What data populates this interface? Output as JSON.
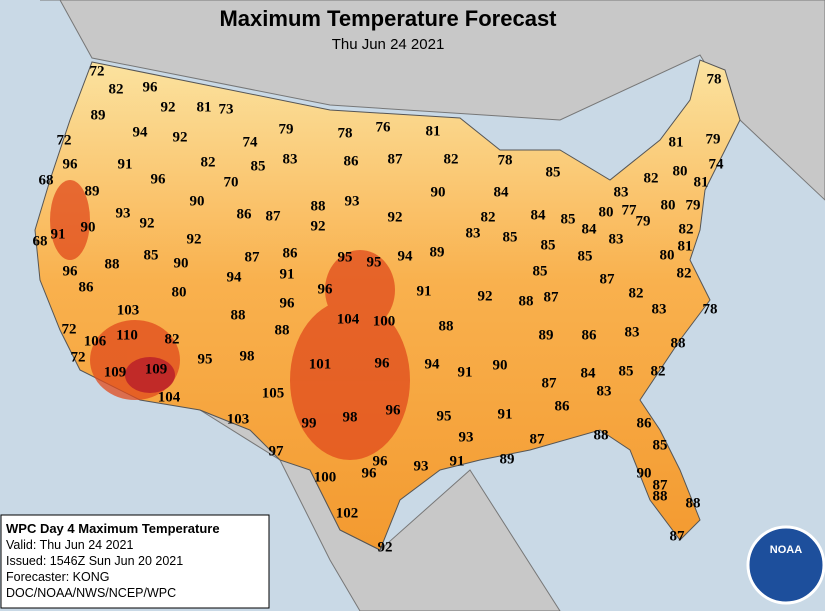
{
  "title": "Maximum Temperature Forecast",
  "subtitle": "Thu Jun 24 2021",
  "temperatures": [
    72,
    82,
    96,
    92,
    81,
    73,
    89,
    94,
    92,
    74,
    79,
    78,
    76,
    81,
    78,
    72,
    82,
    85,
    83,
    86,
    87,
    82,
    78,
    81,
    79,
    96,
    91,
    96,
    70,
    85,
    80,
    74,
    68,
    89,
    90,
    93,
    92,
    86,
    87,
    88,
    93,
    90,
    84,
    82,
    81,
    83,
    80,
    79,
    92,
    82,
    84,
    85,
    80,
    77,
    79,
    90,
    91,
    92,
    83,
    85,
    85,
    84,
    83,
    82,
    92,
    68,
    81,
    88,
    85,
    90,
    87,
    86,
    95,
    95,
    94,
    89,
    85,
    85,
    80,
    96,
    94,
    91,
    82,
    87,
    86,
    80,
    96,
    91,
    92,
    88,
    87,
    82,
    103,
    96,
    88,
    88,
    104,
    100,
    88,
    83,
    78,
    72,
    110,
    82,
    89,
    86,
    83,
    106,
    72,
    95,
    98,
    101,
    96,
    94,
    91,
    90,
    88,
    109,
    109,
    87,
    84,
    85,
    82,
    104,
    105,
    86,
    83,
    103,
    99,
    98,
    96,
    95,
    91,
    86,
    93,
    87,
    88,
    85,
    97,
    96,
    93,
    91,
    89,
    90,
    100,
    96,
    87,
    88,
    88,
    102,
    87,
    92
  ],
  "info": [
    "WPC Day 4 Maximum Temperature",
    "Valid: Thu Jun 24 2021",
    "Issued: 1546Z Sun Jun 20 2021",
    "Forecaster: KONG",
    "DOC/NOAA/NWS/NCEP/WPC"
  ],
  "logo": "NOAA"
}
